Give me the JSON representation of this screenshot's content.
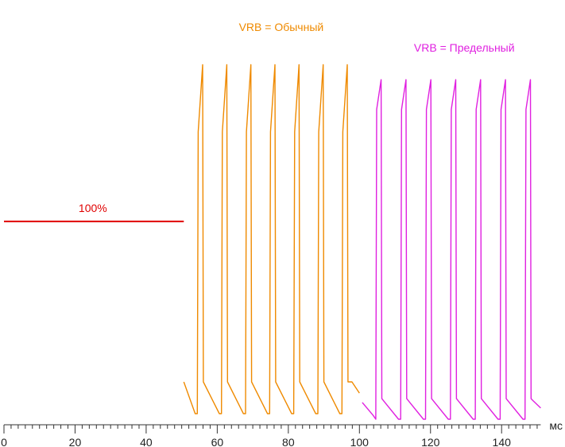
{
  "chart_data": {
    "type": "line",
    "x_unit": "мс",
    "xlim": [
      0,
      151
    ],
    "x_ticks": [
      0,
      20,
      40,
      60,
      80,
      100,
      120,
      140
    ],
    "x_minor_step": 2,
    "ylim": [
      0,
      100
    ],
    "grid": false,
    "legend": "none",
    "series": [
      {
        "name": "100%",
        "color": "#e00000",
        "points": [
          [
            0,
            53
          ],
          [
            50.6,
            53
          ]
        ]
      },
      {
        "name": "VRB = Обычный",
        "color": "#ef8a00",
        "pulse": {
          "first_rise": 54.4,
          "period": 6.78,
          "count": 7,
          "peak": 95,
          "decayed": 77,
          "drop_to": 10,
          "base": 1.5,
          "lead_in": [
            [
              50.6,
              10
            ],
            [
              53.8,
              1.5
            ]
          ],
          "tail": [
            [
              97.9,
              10
            ],
            [
              100,
              7
            ]
          ]
        }
      },
      {
        "name": "VRB = Предельный",
        "color": "#e020e0",
        "pulse": {
          "first_rise": 104.6,
          "period": 7.0,
          "count": 7,
          "peak": 91,
          "decayed": 83,
          "drop_to": 5.5,
          "base": 0,
          "lead_in": [
            [
              100.8,
              4.5
            ],
            [
              103.9,
              1
            ]
          ],
          "tail": [
            [
              148.8,
              5
            ],
            [
              151,
              3
            ]
          ]
        }
      }
    ],
    "annotations": [
      {
        "text": "100%",
        "x": 25,
        "y": 55.5,
        "series": 0
      },
      {
        "text": "VRB = Обычный",
        "x": 78,
        "y": 104,
        "series": 1
      },
      {
        "text": "VRB = Предельный",
        "x": 129.5,
        "y": 98.5,
        "series": 2
      }
    ]
  }
}
